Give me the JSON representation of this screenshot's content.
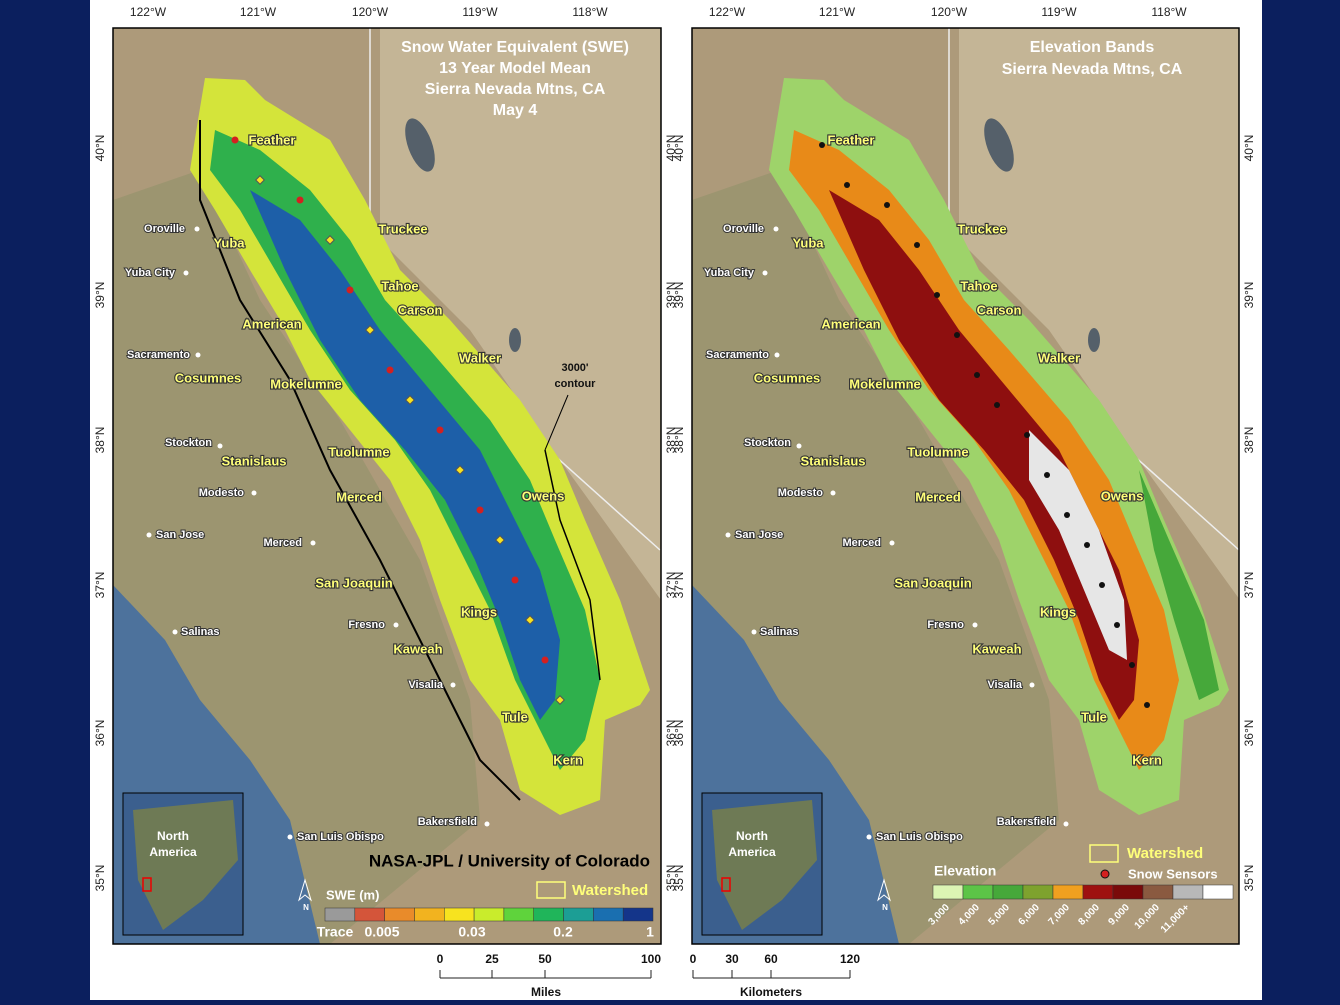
{
  "left_map": {
    "title_lines": [
      "Snow Water Equivalent (SWE)",
      "13 Year Model Mean",
      "Sierra Nevada Mtns, CA",
      "May 4"
    ],
    "credit": "NASA-JPL / University of Colorado",
    "contour_label": [
      "3000'",
      "contour"
    ],
    "legend": {
      "title": "SWE (m)",
      "colors": [
        "#9a9a9a",
        "#d4553a",
        "#e98b2a",
        "#f2b31f",
        "#f7e31f",
        "#c9ec2c",
        "#5fd33c",
        "#20b55a",
        "#1c9e95",
        "#1a6fb0",
        "#14358a"
      ],
      "labels": [
        "Trace",
        "0.005",
        "0.03",
        "0.2",
        "1"
      ],
      "watershed": "Watershed"
    }
  },
  "right_map": {
    "title_lines": [
      "Elevation Bands",
      "Sierra Nevada Mtns, CA"
    ],
    "legend": {
      "title": "Elevation",
      "colors": [
        "#dcf5b4",
        "#5cc447",
        "#46a83a",
        "#7ea22e",
        "#f0a020",
        "#9e1010",
        "#7a0a0a",
        "#8a5a40",
        "#b8b8b8",
        "#ffffff"
      ],
      "labels": [
        "3,000",
        "4,000",
        "5,000",
        "6,000",
        "7,000",
        "8,000",
        "9,000",
        "10,000",
        "11,000+"
      ],
      "watershed": "Watershed",
      "sensors": "Snow Sensors"
    }
  },
  "lon_ticks": [
    "122°W",
    "121°W",
    "120°W",
    "119°W",
    "118°W"
  ],
  "lat_ticks": [
    "40°N",
    "39°N",
    "38°N",
    "37°N",
    "36°N",
    "35°N"
  ],
  "places": [
    "Oroville",
    "Yuba City",
    "Sacramento",
    "Stockton",
    "Modesto",
    "San Jose",
    "Merced",
    "Salinas",
    "Fresno",
    "Visalia",
    "San Luis Obispo",
    "Bakersfield"
  ],
  "basins": [
    "Feather",
    "Yuba",
    "Truckee",
    "Tahoe",
    "Carson",
    "American",
    "Walker",
    "Cosumnes",
    "Mokelumne",
    "Stanislaus",
    "Tuolumne",
    "Merced",
    "Owens",
    "San Joaquin",
    "Kings",
    "Kaweah",
    "Tule",
    "Kern"
  ],
  "inset": [
    "North",
    "America"
  ],
  "compass": "N",
  "scale_miles": {
    "labels": [
      "0",
      "25",
      "50",
      "100"
    ],
    "unit": "Miles"
  },
  "scale_km": {
    "labels": [
      "0",
      "30",
      "60",
      "120"
    ],
    "unit": "Kilometers"
  }
}
